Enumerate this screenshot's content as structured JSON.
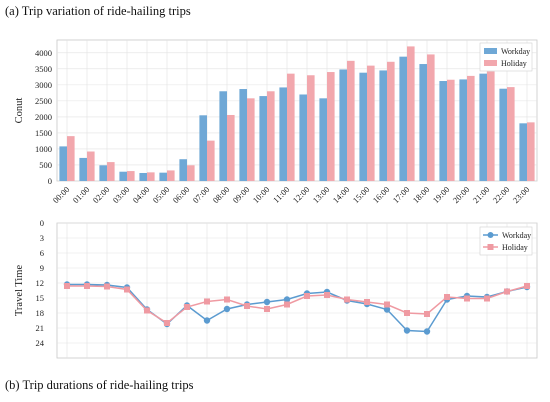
{
  "captions": {
    "top": "(a) Trip variation of ride-hailing trips",
    "bottom": "(b) Trip durations of ride-hailing trips"
  },
  "colors": {
    "workday": "#6fa8d6",
    "holiday": "#f2a7ad",
    "workday_line": "#5b9bd0",
    "holiday_line": "#ef9aa2",
    "grid": "#e2e2e2",
    "frame": "#c8c8c8"
  },
  "chart_data": [
    {
      "type": "bar",
      "ylabel": "Conut",
      "categories": [
        "00:00",
        "01:00",
        "02:00",
        "03:00",
        "04:00",
        "05:00",
        "06:00",
        "07:00",
        "08:00",
        "09:00",
        "10:00",
        "11:00",
        "12:00",
        "13:00",
        "14:00",
        "15:00",
        "16:00",
        "17:00",
        "18:00",
        "19:00",
        "20:00",
        "21:00",
        "22:00",
        "23:00"
      ],
      "yticks": [
        0,
        500,
        1000,
        1500,
        2000,
        2500,
        3000,
        3500,
        4000
      ],
      "ylim": [
        0,
        4400
      ],
      "grid": true,
      "legend_position": "top-right",
      "series": [
        {
          "name": "Workday",
          "values": [
            1080,
            720,
            490,
            290,
            250,
            260,
            680,
            2050,
            2800,
            2870,
            2650,
            2920,
            2700,
            2580,
            3480,
            3380,
            3450,
            3880,
            3650,
            3120,
            3170,
            3350,
            2880,
            1800
          ]
        },
        {
          "name": "Holiday",
          "values": [
            1400,
            920,
            590,
            310,
            270,
            330,
            490,
            1260,
            2060,
            2580,
            2800,
            3350,
            3300,
            3400,
            3750,
            3600,
            3720,
            4200,
            3950,
            3160,
            3280,
            3420,
            2930,
            1830
          ]
        }
      ]
    },
    {
      "type": "line",
      "ylabel": "Travel Time",
      "categories": [
        "00:00",
        "01:00",
        "02:00",
        "03:00",
        "04:00",
        "05:00",
        "06:00",
        "07:00",
        "08:00",
        "09:00",
        "10:00",
        "11:00",
        "12:00",
        "13:00",
        "14:00",
        "15:00",
        "16:00",
        "17:00",
        "18:00",
        "19:00",
        "20:00",
        "21:00",
        "22:00",
        "23:00"
      ],
      "yticks": [
        0,
        3,
        6,
        9,
        12,
        15,
        18,
        21,
        24
      ],
      "ylim": [
        0,
        27
      ],
      "y_inverted": true,
      "grid": true,
      "legend_position": "top-right",
      "series": [
        {
          "name": "Workday",
          "values": [
            12.3,
            12.3,
            12.4,
            12.9,
            17.3,
            20.2,
            16.5,
            19.5,
            17.2,
            16.3,
            15.8,
            15.3,
            14.1,
            13.8,
            15.5,
            16.2,
            17.3,
            21.5,
            21.7,
            15.3,
            14.6,
            14.8,
            13.7,
            12.8
          ]
        },
        {
          "name": "Holiday",
          "values": [
            12.6,
            12.6,
            12.7,
            13.3,
            17.5,
            20.0,
            16.8,
            15.7,
            15.3,
            16.6,
            17.2,
            16.3,
            14.6,
            14.4,
            15.3,
            15.8,
            16.3,
            18.0,
            18.2,
            14.8,
            15.1,
            15.1,
            13.7,
            12.6
          ]
        }
      ]
    }
  ]
}
